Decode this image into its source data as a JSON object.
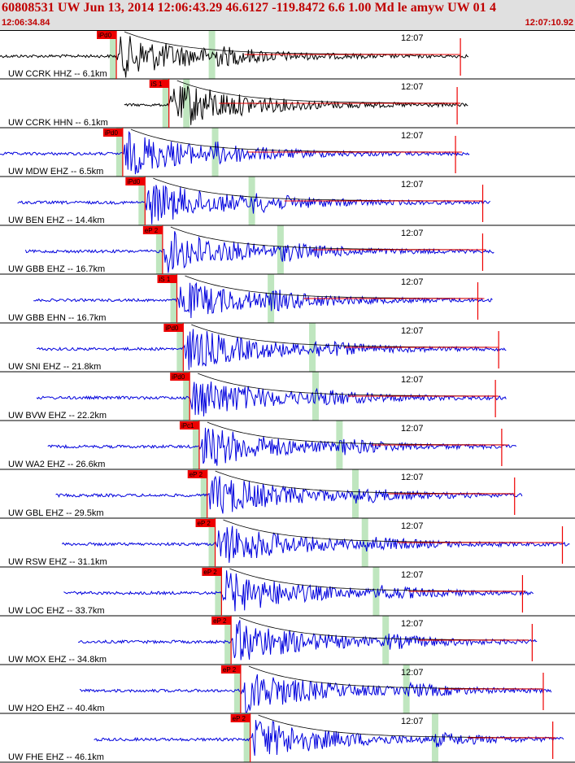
{
  "header": {
    "title": "60808531 UW Jun 13, 2014 12:06:43.29   46.6127 -119.8472  6.6 1.00 Md le amyw UW 01   4",
    "start_time": "12:06:34.84",
    "end_time": "12:07:10.92"
  },
  "colors": {
    "header_bg": "#e0e0e0",
    "header_text": "#c00000",
    "trace_z": "#0000dd",
    "trace_ccrk": "#000000",
    "pick": "#ee0000",
    "pick_window": "#bfe6bf",
    "coda": "#000000"
  },
  "chart_data": {
    "type": "line",
    "title": "",
    "x_unit": "seconds after 12:06:34.84",
    "xlim": [
      0,
      36.08
    ],
    "minute_mark": {
      "label": "12:07",
      "t": 25.16
    },
    "traces": [
      {
        "label": "UW CCRK HHZ -- 6.1km",
        "color": "black",
        "pick": "iPd0",
        "p": 7.3,
        "s": 13.3,
        "start": 0,
        "end": 29.4,
        "amp": 1.0
      },
      {
        "label": "UW CCRK HHN -- 6.1km",
        "color": "black",
        "pick": "iS 1",
        "p": 10.6,
        "s": 11.7,
        "start": 7.8,
        "end": 29.4,
        "amp": 0.9,
        "spick": true
      },
      {
        "label": "UW MDW EHZ -- 6.5km",
        "color": "blue",
        "pick": "iPd0",
        "p": 7.7,
        "s": 13.5,
        "start": 0,
        "end": 29.5,
        "amp": 1.0
      },
      {
        "label": "UW BEN EHZ -- 14.4km",
        "color": "blue",
        "pick": "iPd0",
        "p": 9.1,
        "s": 15.8,
        "start": 1.1,
        "end": 30.8,
        "amp": 1.0
      },
      {
        "label": "UW GBB EHZ -- 16.7km",
        "color": "blue",
        "pick": "eP 2",
        "p": 10.2,
        "s": 17.6,
        "start": 1.6,
        "end": 31.0,
        "amp": 1.0
      },
      {
        "label": "UW GBB EHN -- 16.7km",
        "color": "blue",
        "pick": "iS 1",
        "p": 11.1,
        "s": 17.0,
        "start": 2.1,
        "end": 30.9,
        "amp": 0.9,
        "spick": true
      },
      {
        "label": "UW SNI EHZ -- 21.8km",
        "color": "blue",
        "pick": "iPd0",
        "p": 11.5,
        "s": 19.6,
        "start": 2.3,
        "end": 31.8,
        "amp": 1.0
      },
      {
        "label": "UW BVW EHZ -- 22.2km",
        "color": "blue",
        "pick": "iPd0",
        "p": 11.9,
        "s": 19.8,
        "start": 2.3,
        "end": 31.8,
        "amp": 1.0
      },
      {
        "label": "UW WA2 EHZ -- 26.6km",
        "color": "blue",
        "pick": "iPc1",
        "p": 12.5,
        "s": 21.3,
        "start": 3.0,
        "end": 32.4,
        "amp": 1.0
      },
      {
        "label": "UW GBL EHZ -- 29.5km",
        "color": "blue",
        "pick": "eP 2",
        "p": 13.0,
        "s": 22.3,
        "start": 3.5,
        "end": 32.8,
        "amp": 1.0
      },
      {
        "label": "UW RSW EHZ -- 31.1km",
        "color": "blue",
        "pick": "eP 2",
        "p": 13.5,
        "s": 22.9,
        "start": 3.9,
        "end": 35.8,
        "amp": 1.0
      },
      {
        "label": "UW LOC EHZ -- 33.7km",
        "color": "blue",
        "pick": "eP 2",
        "p": 13.9,
        "s": 23.6,
        "start": 4.0,
        "end": 33.5,
        "amp": 1.0
      },
      {
        "label": "UW MOX EHZ -- 34.8km",
        "color": "blue",
        "pick": "eP 2",
        "p": 14.5,
        "s": 24.2,
        "start": 4.9,
        "end": 33.7,
        "amp": 1.0
      },
      {
        "label": "UW H2O EHZ -- 40.4km",
        "color": "blue",
        "pick": "eP 2",
        "p": 15.1,
        "s": 25.5,
        "start": 5.0,
        "end": 34.6,
        "amp": 1.0
      },
      {
        "label": "UW FHE EHZ -- 46.1km",
        "color": "blue",
        "pick": "eP 2",
        "p": 15.7,
        "s": 27.3,
        "start": 5.9,
        "end": 35.4,
        "amp": 1.0
      }
    ]
  }
}
